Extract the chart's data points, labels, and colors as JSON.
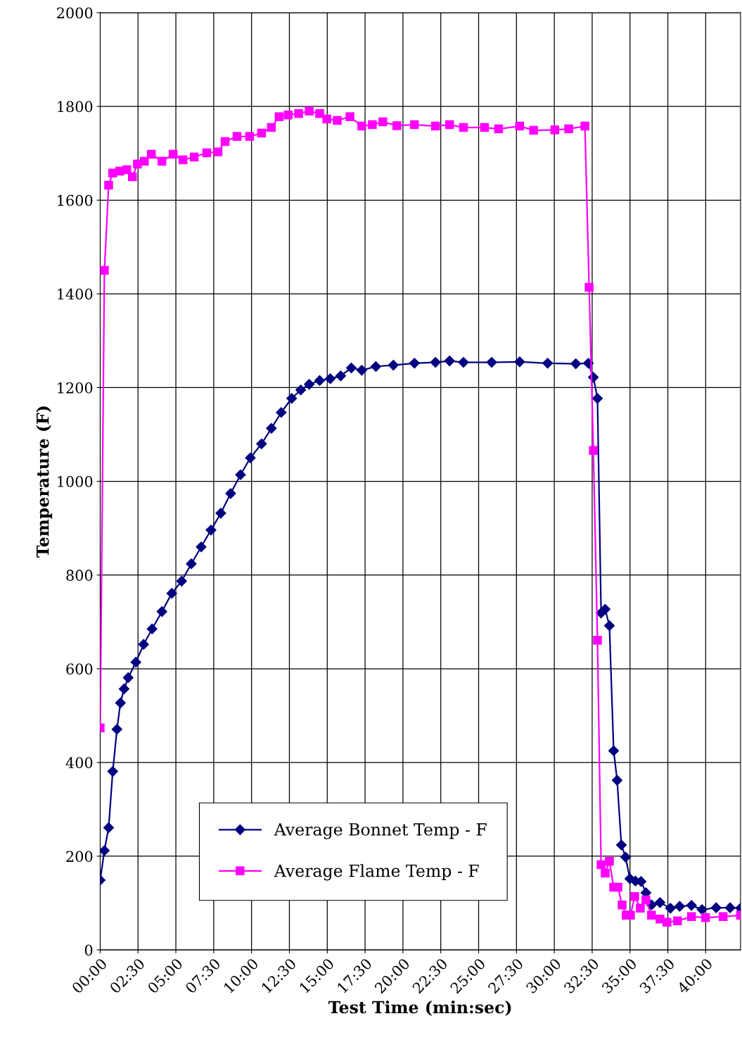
{
  "chart_data": {
    "type": "line",
    "xlabel": "Test Time (min:sec)",
    "ylabel": "Temperature (F)",
    "xlim": [
      0,
      42.3
    ],
    "ylim": [
      0,
      2000
    ],
    "xticks": [
      {
        "value": 0,
        "label": "00:00"
      },
      {
        "value": 2.5,
        "label": "02:30"
      },
      {
        "value": 5,
        "label": "05:00"
      },
      {
        "value": 7.5,
        "label": "07:30"
      },
      {
        "value": 10,
        "label": "10:00"
      },
      {
        "value": 12.5,
        "label": "12:30"
      },
      {
        "value": 15,
        "label": "15:00"
      },
      {
        "value": 17.5,
        "label": "17:30"
      },
      {
        "value": 20,
        "label": "20:00"
      },
      {
        "value": 22.5,
        "label": "22:30"
      },
      {
        "value": 25,
        "label": "25:00"
      },
      {
        "value": 27.5,
        "label": "27:30"
      },
      {
        "value": 30,
        "label": "30:00"
      },
      {
        "value": 32.5,
        "label": "32:30"
      },
      {
        "value": 35,
        "label": "35:00"
      },
      {
        "value": 37.5,
        "label": "37:30"
      },
      {
        "value": 40,
        "label": "40:00"
      }
    ],
    "yticks": [
      0,
      200,
      400,
      600,
      800,
      1000,
      1200,
      1400,
      1600,
      1800,
      2000
    ],
    "grid": true,
    "legend": "bottom",
    "line_style": "solid",
    "series": [
      {
        "name": "Average Bonnet Temp - F",
        "color": "#000080",
        "marker": "diamond",
        "x": [
          0,
          0.28,
          0.56,
          0.83,
          1.11,
          1.34,
          1.58,
          1.85,
          2.36,
          2.87,
          3.43,
          4.08,
          4.73,
          5.38,
          6.02,
          6.67,
          7.32,
          7.97,
          8.62,
          9.27,
          9.92,
          10.66,
          11.31,
          11.96,
          12.65,
          13.25,
          13.81,
          14.5,
          15.2,
          15.89,
          16.59,
          17.28,
          18.21,
          19.37,
          20.76,
          22.15,
          23.08,
          24.0,
          25.86,
          27.71,
          29.56,
          31.42,
          32.25,
          32.58,
          32.85,
          33.09,
          33.36,
          33.64,
          33.92,
          34.15,
          34.43,
          34.71,
          34.99,
          35.36,
          35.73,
          36.05,
          36.42,
          36.98,
          37.67,
          38.28,
          39.06,
          39.76,
          40.69,
          41.61,
          42.3
        ],
        "values": [
          149,
          212,
          261,
          381,
          471,
          527,
          557,
          581,
          614,
          652,
          685,
          722,
          761,
          787,
          824,
          860,
          896,
          932,
          974,
          1014,
          1050,
          1080,
          1113,
          1147,
          1177,
          1195,
          1207,
          1215,
          1219,
          1225,
          1242,
          1237,
          1245,
          1248,
          1252,
          1254,
          1257,
          1254,
          1254,
          1255,
          1252,
          1251,
          1252,
          1222,
          1177,
          719,
          727,
          692,
          425,
          362,
          224,
          198,
          152,
          147,
          146,
          122,
          96,
          101,
          89,
          93,
          95,
          86,
          90,
          90,
          89
        ]
      },
      {
        "name": "Average Flame Temp - F",
        "color": "#ff00ff",
        "marker": "square",
        "x": [
          0,
          0.28,
          0.56,
          0.83,
          1.3,
          1.76,
          2.13,
          2.46,
          2.92,
          3.38,
          4.08,
          4.82,
          5.47,
          6.21,
          7.04,
          7.78,
          8.25,
          9.04,
          9.87,
          10.66,
          11.31,
          11.82,
          12.42,
          13.11,
          13.81,
          14.5,
          14.97,
          15.66,
          16.5,
          17.28,
          17.98,
          18.67,
          19.6,
          20.76,
          22.15,
          23.08,
          24.0,
          25.39,
          26.32,
          27.71,
          28.63,
          30.03,
          30.95,
          32.02,
          32.3,
          32.58,
          32.85,
          33.09,
          33.36,
          33.64,
          33.92,
          34.2,
          34.48,
          34.75,
          35.03,
          35.31,
          35.68,
          36.05,
          36.42,
          36.98,
          37.44,
          38.14,
          39.06,
          39.99,
          41.15,
          42.3
        ],
        "values": [
          474,
          1450,
          1632,
          1658,
          1662,
          1665,
          1650,
          1677,
          1683,
          1698,
          1683,
          1698,
          1686,
          1692,
          1701,
          1703,
          1725,
          1736,
          1736,
          1743,
          1755,
          1778,
          1782,
          1785,
          1790,
          1785,
          1773,
          1770,
          1778,
          1758,
          1761,
          1767,
          1759,
          1761,
          1758,
          1761,
          1755,
          1755,
          1752,
          1758,
          1749,
          1750,
          1752,
          1758,
          1414,
          1066,
          661,
          182,
          164,
          189,
          134,
          134,
          96,
          74,
          74,
          114,
          89,
          107,
          74,
          66,
          59,
          62,
          71,
          69,
          71,
          74
        ]
      }
    ]
  }
}
